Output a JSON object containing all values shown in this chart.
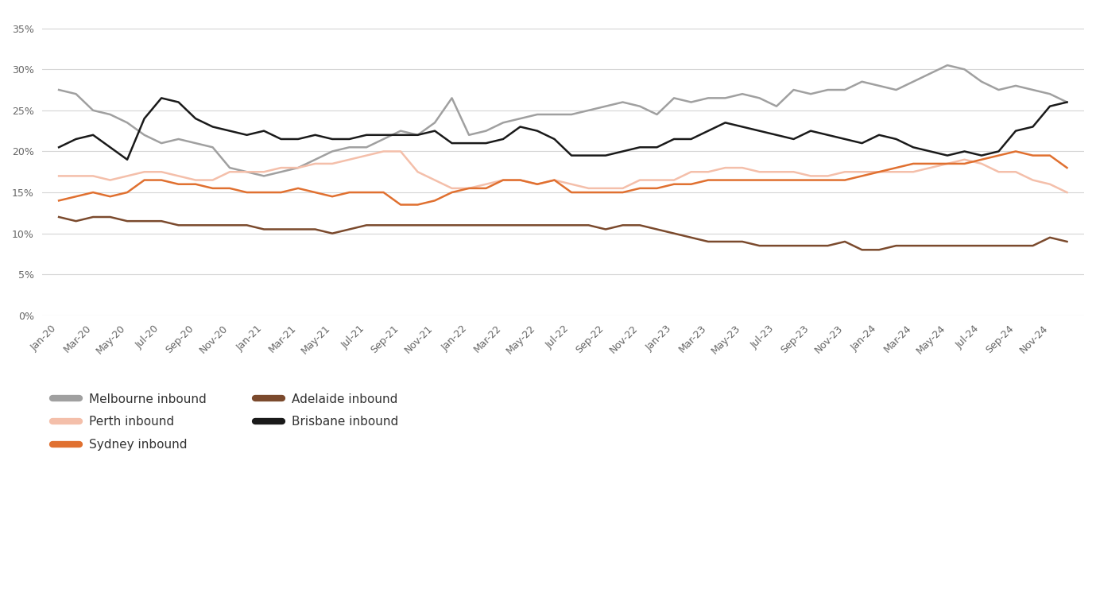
{
  "background_color": "#ffffff",
  "series": {
    "Melbourne inbound": {
      "color": "#a0a0a0",
      "linewidth": 1.8,
      "values": [
        27.5,
        27.0,
        25.0,
        24.5,
        23.5,
        22.0,
        21.0,
        21.5,
        21.0,
        20.5,
        18.0,
        17.5,
        17.0,
        17.5,
        18.0,
        19.0,
        20.0,
        20.5,
        20.5,
        21.5,
        22.5,
        22.0,
        23.5,
        26.5,
        22.0,
        22.5,
        23.5,
        24.0,
        24.5,
        24.5,
        24.5,
        25.0,
        25.5,
        26.0,
        25.5,
        24.5,
        26.5,
        26.0,
        26.5,
        26.5,
        27.0,
        26.5,
        25.5,
        27.5,
        27.0,
        27.5,
        27.5,
        28.5,
        28.0,
        27.5,
        28.5,
        29.5,
        30.5,
        30.0,
        28.5,
        27.5,
        28.0,
        27.5,
        27.0,
        26.0
      ]
    },
    "Brisbane inbound": {
      "color": "#1a1a1a",
      "linewidth": 1.8,
      "values": [
        20.5,
        21.5,
        22.0,
        20.5,
        19.0,
        24.0,
        26.5,
        26.0,
        24.0,
        23.0,
        22.5,
        22.0,
        22.5,
        21.5,
        21.5,
        22.0,
        21.5,
        21.5,
        22.0,
        22.0,
        22.0,
        22.0,
        22.5,
        21.0,
        21.0,
        21.0,
        21.5,
        23.0,
        22.5,
        21.5,
        19.5,
        19.5,
        19.5,
        20.0,
        20.5,
        20.5,
        21.5,
        21.5,
        22.5,
        23.5,
        23.0,
        22.5,
        22.0,
        21.5,
        22.5,
        22.0,
        21.5,
        21.0,
        22.0,
        21.5,
        20.5,
        20.0,
        19.5,
        20.0,
        19.5,
        20.0,
        22.5,
        23.0,
        25.5,
        26.0
      ]
    },
    "Perth inbound": {
      "color": "#f4bfaa",
      "linewidth": 1.8,
      "values": [
        17.0,
        17.0,
        17.0,
        16.5,
        17.0,
        17.5,
        17.5,
        17.0,
        16.5,
        16.5,
        17.5,
        17.5,
        17.5,
        18.0,
        18.0,
        18.5,
        18.5,
        19.0,
        19.5,
        20.0,
        20.0,
        17.5,
        16.5,
        15.5,
        15.5,
        16.0,
        16.5,
        16.5,
        16.0,
        16.5,
        16.0,
        15.5,
        15.5,
        15.5,
        16.5,
        16.5,
        16.5,
        17.5,
        17.5,
        18.0,
        18.0,
        17.5,
        17.5,
        17.5,
        17.0,
        17.0,
        17.5,
        17.5,
        17.5,
        17.5,
        17.5,
        18.0,
        18.5,
        19.0,
        18.5,
        17.5,
        17.5,
        16.5,
        16.0,
        15.0
      ]
    },
    "Sydney inbound": {
      "color": "#e07030",
      "linewidth": 1.8,
      "values": [
        14.0,
        14.5,
        15.0,
        14.5,
        15.0,
        16.5,
        16.5,
        16.0,
        16.0,
        15.5,
        15.5,
        15.0,
        15.0,
        15.0,
        15.5,
        15.0,
        14.5,
        15.0,
        15.0,
        15.0,
        13.5,
        13.5,
        14.0,
        15.0,
        15.5,
        15.5,
        16.5,
        16.5,
        16.0,
        16.5,
        15.0,
        15.0,
        15.0,
        15.0,
        15.5,
        15.5,
        16.0,
        16.0,
        16.5,
        16.5,
        16.5,
        16.5,
        16.5,
        16.5,
        16.5,
        16.5,
        16.5,
        17.0,
        17.5,
        18.0,
        18.5,
        18.5,
        18.5,
        18.5,
        19.0,
        19.5,
        20.0,
        19.5,
        19.5,
        18.0
      ]
    },
    "Adelaide inbound": {
      "color": "#7b4a2d",
      "linewidth": 1.8,
      "values": [
        12.0,
        11.5,
        12.0,
        12.0,
        11.5,
        11.5,
        11.5,
        11.0,
        11.0,
        11.0,
        11.0,
        11.0,
        10.5,
        10.5,
        10.5,
        10.5,
        10.0,
        10.5,
        11.0,
        11.0,
        11.0,
        11.0,
        11.0,
        11.0,
        11.0,
        11.0,
        11.0,
        11.0,
        11.0,
        11.0,
        11.0,
        11.0,
        10.5,
        11.0,
        11.0,
        10.5,
        10.0,
        9.5,
        9.0,
        9.0,
        9.0,
        8.5,
        8.5,
        8.5,
        8.5,
        8.5,
        9.0,
        8.0,
        8.0,
        8.5,
        8.5,
        8.5,
        8.5,
        8.5,
        8.5,
        8.5,
        8.5,
        8.5,
        9.5,
        9.0
      ]
    }
  },
  "x_tick_positions": [
    0,
    2,
    4,
    6,
    8,
    10,
    12,
    14,
    16,
    18,
    20,
    22,
    24,
    26,
    28,
    30,
    32,
    34,
    36,
    38,
    40,
    42,
    44,
    46,
    48,
    50,
    52,
    54,
    56,
    58
  ],
  "x_labels": [
    "Jan-20",
    "Mar-20",
    "May-20",
    "Jul-20",
    "Sep-20",
    "Nov-20",
    "Jan-21",
    "Mar-21",
    "May-21",
    "Jul-21",
    "Sep-21",
    "Nov-21",
    "Jan-22",
    "Mar-22",
    "May-22",
    "Jul-22",
    "Sep-22",
    "Nov-22",
    "Jan-23",
    "Mar-23",
    "May-23",
    "Jul-23",
    "Sep-23",
    "Nov-23",
    "Jan-24",
    "Mar-24",
    "May-24",
    "Jul-24",
    "Sep-24",
    "Nov-24"
  ],
  "ylim": [
    0,
    37
  ],
  "yticks": [
    0,
    5,
    10,
    15,
    20,
    25,
    30,
    35
  ],
  "grid_color": "#d5d5d5",
  "legend_items": [
    {
      "label": "Melbourne inbound",
      "series_key": "Melbourne inbound"
    },
    {
      "label": "Perth inbound",
      "series_key": "Perth inbound"
    },
    {
      "label": "Sydney inbound",
      "series_key": "Sydney inbound"
    },
    {
      "label": "Adelaide inbound",
      "series_key": "Adelaide inbound"
    },
    {
      "label": "Brisbane inbound",
      "series_key": "Brisbane inbound"
    }
  ]
}
